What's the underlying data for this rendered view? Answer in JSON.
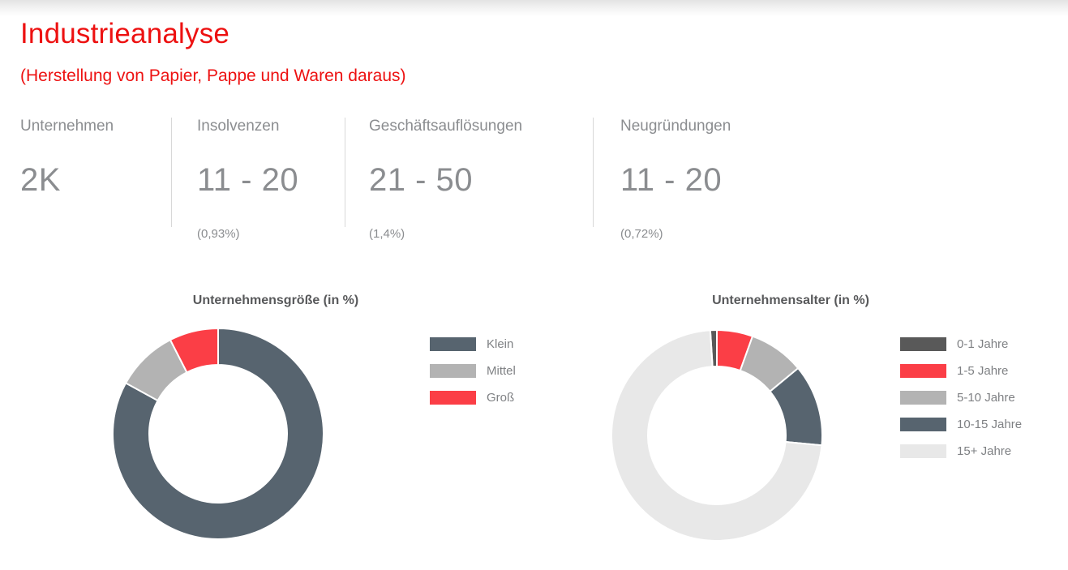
{
  "page": {
    "title": "Industrieanalyse",
    "subtitle": "(Herstellung von Papier, Pappe und Waren daraus)"
  },
  "theme": {
    "accent_red_title": "#ed1111",
    "accent_red_series": "#fb3e46",
    "slate": "#57646f",
    "mid_gray": "#b3b3b3",
    "dark_gray": "#595959",
    "light_gray": "#e8e8e8",
    "text_gray": "#8b8d90"
  },
  "stats": [
    {
      "label": "Unternehmen",
      "value": "2K",
      "percent": ""
    },
    {
      "label": "Insolvenzen",
      "value": "11 - 20",
      "percent": "(0,93%)"
    },
    {
      "label": "Geschäftsauflösungen",
      "value": "21 - 50",
      "percent": "(1,4%)"
    },
    {
      "label": "Neugründungen",
      "value": "11 - 20",
      "percent": "(0,72%)"
    }
  ],
  "chart_data": [
    {
      "type": "donut",
      "title": "Unternehmensgröße (in %)",
      "legend_position": "right",
      "start_angle_deg": 0,
      "series": [
        {
          "label": "Klein",
          "value": 83,
          "color": "#57646f"
        },
        {
          "label": "Mittel",
          "value": 9.5,
          "color": "#b3b3b3"
        },
        {
          "label": "Groß",
          "value": 7.5,
          "color": "#fb3e46"
        }
      ]
    },
    {
      "type": "donut",
      "title": "Unternehmensalter (in %)",
      "legend_position": "right",
      "start_angle_deg": -3.6,
      "series": [
        {
          "label": "0-1 Jahre",
          "value": 1,
          "color": "#595959"
        },
        {
          "label": "1-5 Jahre",
          "value": 5.5,
          "color": "#fb3e46"
        },
        {
          "label": "5-10 Jahre",
          "value": 8.5,
          "color": "#b3b3b3"
        },
        {
          "label": "10-15 Jahre",
          "value": 12.5,
          "color": "#57646f"
        },
        {
          "label": "15+ Jahre",
          "value": 72.5,
          "color": "#e8e8e8"
        }
      ]
    }
  ]
}
